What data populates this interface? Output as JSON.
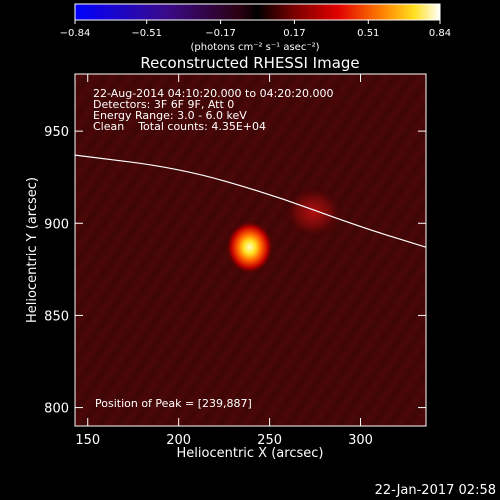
{
  "colorbar": {
    "ticks": [
      "−0.84",
      "−0.51",
      "−0.17",
      "0.17",
      "0.51",
      "0.84"
    ],
    "tick_values": [
      -0.84,
      -0.51,
      -0.17,
      0.17,
      0.51,
      0.84
    ],
    "range": [
      -0.84,
      0.84
    ],
    "unit_label": "(photons cm⁻² s⁻¹ asec⁻²)"
  },
  "chart_data": {
    "type": "heatmap",
    "title": "Reconstructed RHESSI Image",
    "xlabel": "Heliocentric X (arcsec)",
    "ylabel": "Heliocentric Y (arcsec)",
    "xlim": [
      143,
      336
    ],
    "ylim": [
      790,
      981
    ],
    "xticks": [
      "150",
      "200",
      "250",
      "300"
    ],
    "xtick_values": [
      150,
      200,
      250,
      300
    ],
    "yticks": [
      "950",
      "900",
      "850",
      "800"
    ],
    "ytick_values": [
      950,
      900,
      850,
      800
    ],
    "info_lines": [
      "22-Aug-2014 04:10:20.000 to 04:20:20.000",
      "Detectors: 3F 6F 9F, Att 0",
      "Energy Range: 3.0 - 6.0 keV",
      "Clean    Total counts: 4.35E+04"
    ],
    "peak_label": "Position of Peak = [239,887]",
    "peak": [
      239,
      887
    ],
    "peak_value": 0.84,
    "secondary_source": [
      274,
      906
    ],
    "limb": [
      [
        143,
        937
      ],
      [
        200,
        930
      ],
      [
        250,
        916
      ],
      [
        300,
        898
      ],
      [
        336,
        887
      ]
    ],
    "colormap": "black-red-yellow-white (negative: blue-purple)"
  },
  "footer": {
    "timestamp": "22-Jan-2017 02:58"
  }
}
